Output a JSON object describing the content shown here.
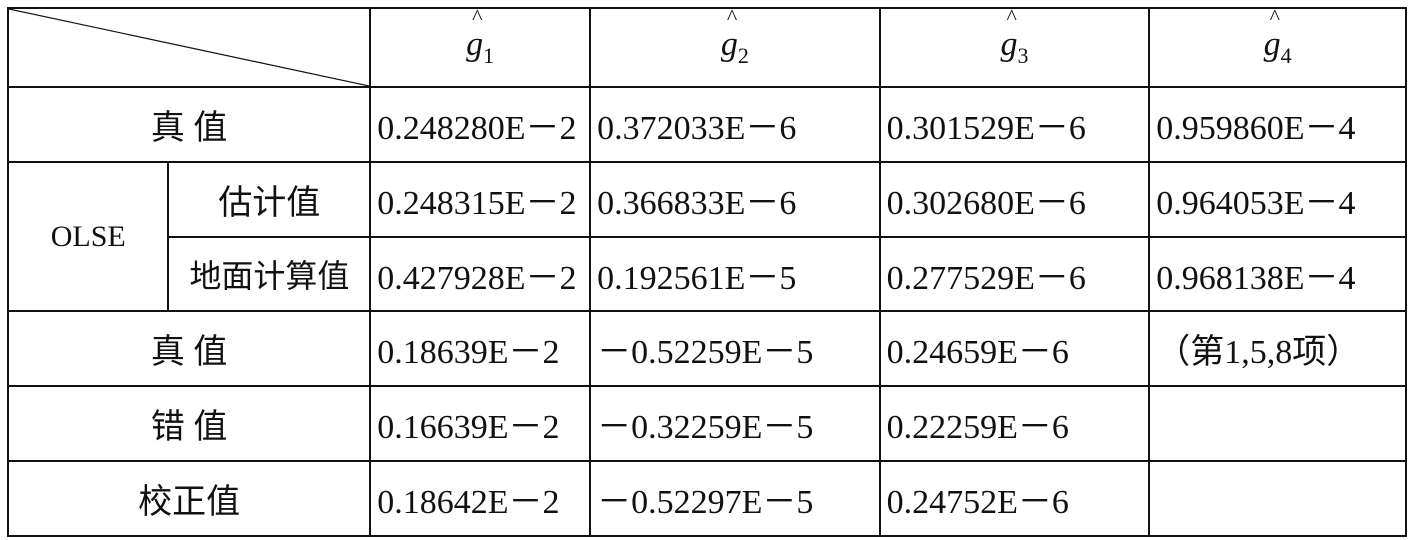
{
  "columns": [
    {
      "symbol": "g",
      "sub": "1"
    },
    {
      "symbol": "g",
      "sub": "2"
    },
    {
      "symbol": "g",
      "sub": "3"
    },
    {
      "symbol": "g",
      "sub": "4"
    }
  ],
  "rows": [
    {
      "label": "真 值",
      "values": [
        "0.248280E－2",
        "0.372033E－6",
        "0.301529E－6",
        "0.959860E－4"
      ]
    },
    {
      "group": "OLSE",
      "label": "估计值",
      "values": [
        "0.248315E－2",
        "0.366833E－6",
        "0.302680E－6",
        "0.964053E－4"
      ]
    },
    {
      "label": "地面计算值",
      "values": [
        "0.427928E－2",
        "0.192561E－5",
        "0.277529E－6",
        "0.968138E－4"
      ]
    },
    {
      "label": "真 值",
      "values": [
        "0.18639E－2",
        "－0.52259E－5",
        "0.24659E－6",
        "（第1,5,8项）"
      ]
    },
    {
      "label": "错 值",
      "values": [
        "0.16639E－2",
        "－0.32259E－5",
        "0.22259E－6",
        ""
      ]
    },
    {
      "label": "校正值",
      "values": [
        "0.18642E－2",
        "－0.52297E－5",
        "0.24752E－6",
        ""
      ]
    }
  ]
}
